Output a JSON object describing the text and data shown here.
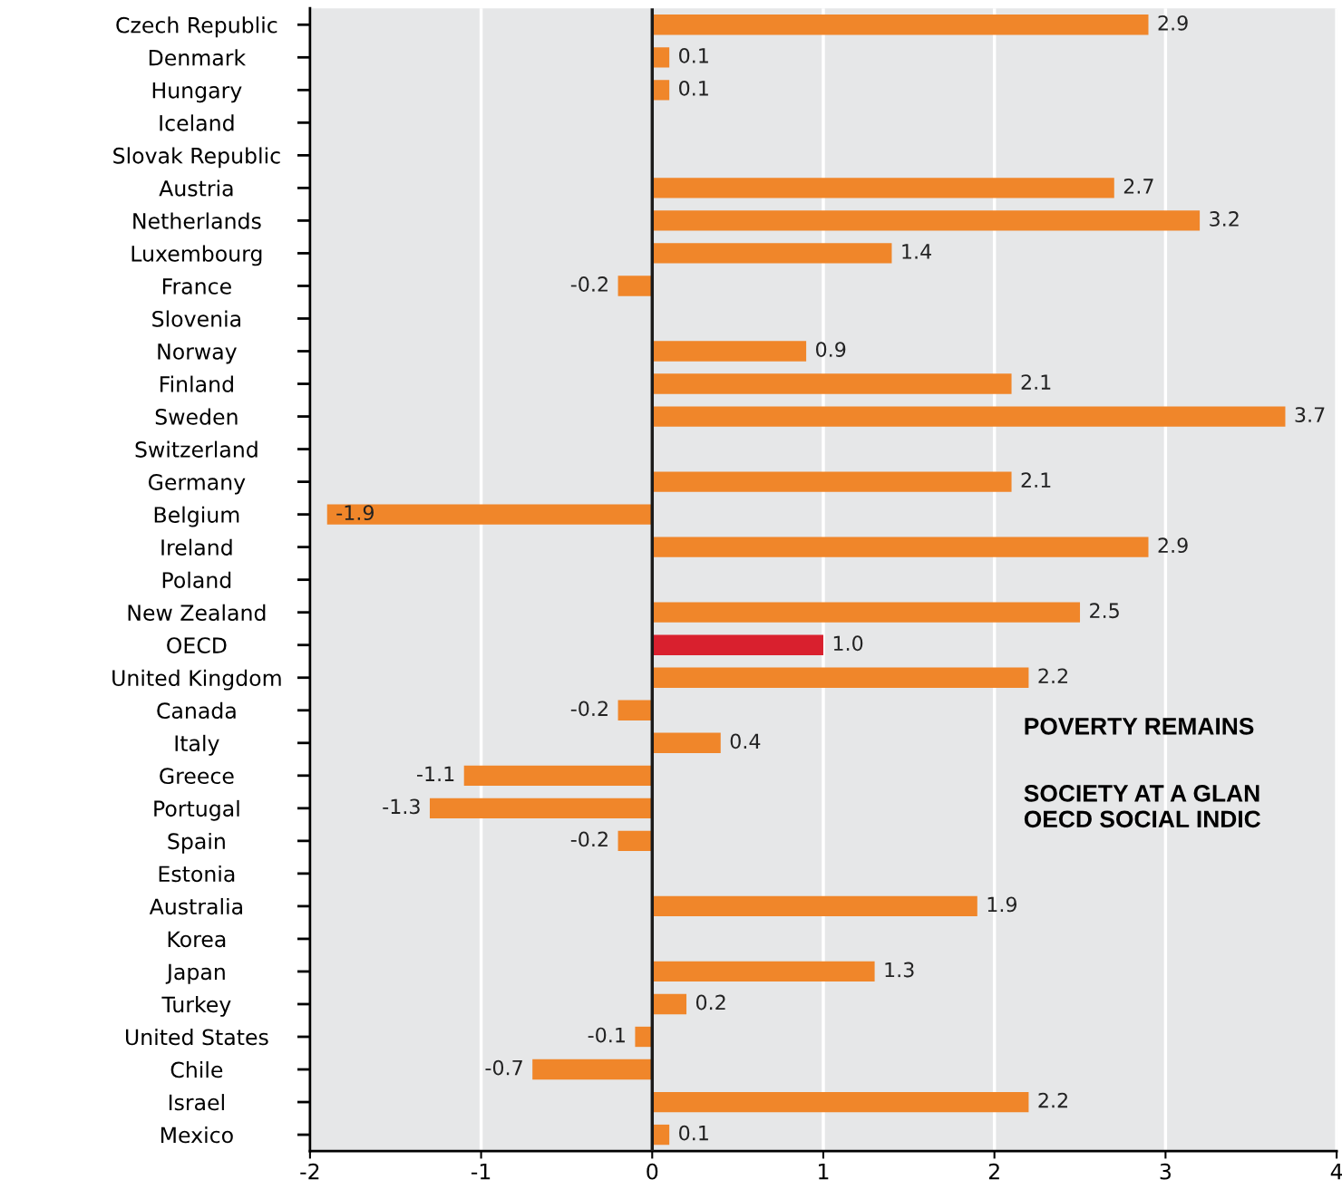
{
  "chart_data": {
    "type": "bar",
    "orientation": "horizontal",
    "categories": [
      "Czech Republic",
      "Denmark",
      "Hungary",
      "Iceland",
      "Slovak Republic",
      "Austria",
      "Netherlands",
      "Luxembourg",
      "France",
      "Slovenia",
      "Norway",
      "Finland",
      "Sweden",
      "Switzerland",
      "Germany",
      "Belgium",
      "Ireland",
      "Poland",
      "New Zealand",
      "OECD",
      "United Kingdom",
      "Canada",
      "Italy",
      "Greece",
      "Portugal",
      "Spain",
      "Estonia",
      "Australia",
      "Korea",
      "Japan",
      "Turkey",
      "United States",
      "Chile",
      "Israel",
      "Mexico"
    ],
    "values": [
      2.9,
      0.1,
      0.1,
      null,
      null,
      2.7,
      3.2,
      1.4,
      -0.2,
      null,
      0.9,
      2.1,
      3.7,
      null,
      2.1,
      -1.9,
      2.9,
      null,
      2.5,
      1.0,
      2.2,
      -0.2,
      0.4,
      -1.1,
      -1.3,
      -0.2,
      null,
      1.9,
      null,
      1.3,
      0.2,
      -0.1,
      -0.7,
      2.2,
      0.1
    ],
    "value_labels": [
      "2.9",
      "0.1",
      "0.1",
      null,
      null,
      "2.7",
      "3.2",
      "1.4",
      "-0.2",
      null,
      "0.9",
      "2.1",
      "3.7",
      null,
      "2.1",
      "-1.9",
      "2.9",
      null,
      "2.5",
      "1.0",
      "2.2",
      "-0.2",
      "0.4",
      "-1.1",
      "-1.3",
      "-0.2",
      null,
      "1.9",
      null,
      "1.3",
      "0.2",
      "-0.1",
      "-0.7",
      "2.2",
      "0.1"
    ],
    "colors": [
      "#f0862a",
      "#f0862a",
      "#f0862a",
      "#f0862a",
      "#f0862a",
      "#f0862a",
      "#f0862a",
      "#f0862a",
      "#f0862a",
      "#f0862a",
      "#f0862a",
      "#f0862a",
      "#f0862a",
      "#f0862a",
      "#f0862a",
      "#f0862a",
      "#f0862a",
      "#f0862a",
      "#f0862a",
      "#d9202e",
      "#f0862a",
      "#f0862a",
      "#f0862a",
      "#f0862a",
      "#f0862a",
      "#f0862a",
      "#f0862a",
      "#f0862a",
      "#f0862a",
      "#f0862a",
      "#f0862a",
      "#f0862a",
      "#f0862a",
      "#f0862a",
      "#f0862a"
    ],
    "xlim": [
      -2,
      4
    ],
    "xticks": [
      -2,
      -1,
      0,
      1,
      2,
      3,
      4
    ],
    "grid": "x",
    "ref_lines": [
      {
        "axis": "x",
        "value": 0,
        "color": "#1a1a1a"
      }
    ],
    "annotations": [
      "POVERTY REMAINS",
      "SOCIETY AT A GLAN\nOECD SOCIAL INDIC"
    ]
  }
}
